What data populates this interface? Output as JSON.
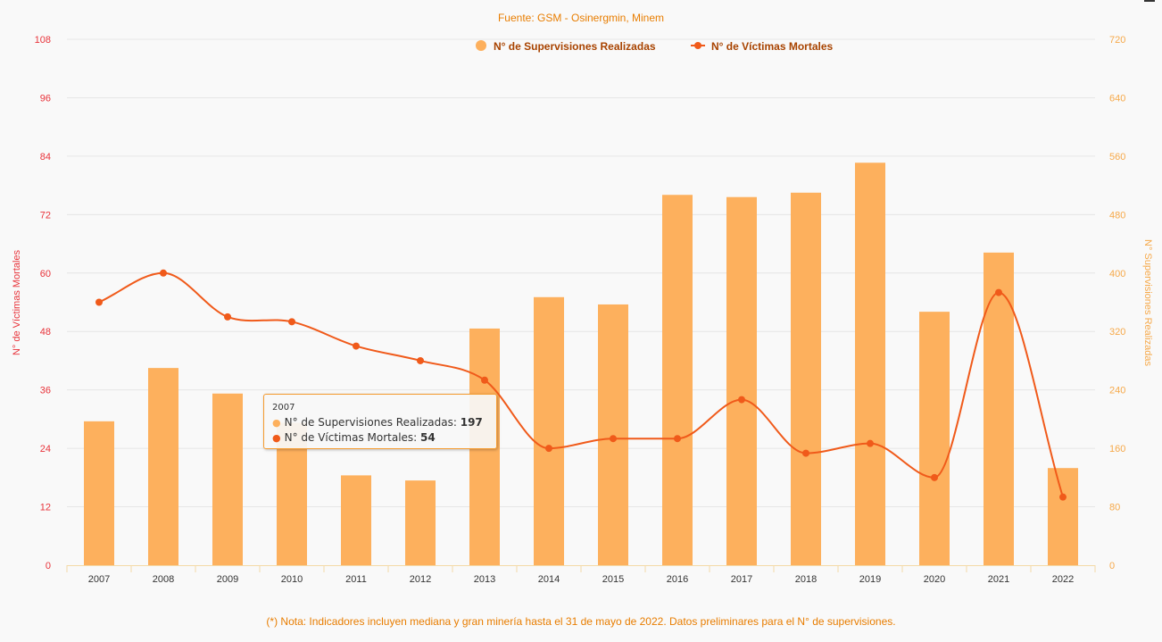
{
  "source_title": "Fuente: GSM - Osinergmin, Minem",
  "footnote": "(*) Nota: Indicadores incluyen mediana y gran minería hasta el 31 de mayo de 2022. Datos preliminares para el N° de supervisiones.",
  "colors": {
    "bars": "#fdb05d",
    "line": "#f05a1a",
    "left_axis": "#e8333a",
    "right_axis": "#f6a94a",
    "text_orange": "#e87d00",
    "grid": "#e6e6e6"
  },
  "legend": {
    "bar_label": "N° de Supervisiones Realizadas",
    "line_label": "N° de Víctimas Mortales"
  },
  "tooltip": {
    "year": "2007",
    "bar_label": "N° de Supervisiones Realizadas",
    "bar_value": "197",
    "line_label": "N° de Víctimas Mortales",
    "line_value": "54"
  },
  "chart_data": {
    "type": "bar",
    "categories": [
      "2007",
      "2008",
      "2009",
      "2010",
      "2011",
      "2012",
      "2013",
      "2014",
      "2015",
      "2016",
      "2017",
      "2018",
      "2019",
      "2020",
      "2021",
      "2022"
    ],
    "series": [
      {
        "name": "N° de Supervisiones Realizadas",
        "type": "bar",
        "axis": "right",
        "values": [
          197,
          270,
          235,
          195,
          123,
          116,
          324,
          367,
          357,
          507,
          504,
          510,
          551,
          347,
          428,
          133
        ]
      },
      {
        "name": "N° de Víctimas Mortales",
        "type": "line",
        "axis": "left",
        "smooth": true,
        "values": [
          54,
          60,
          51,
          50,
          45,
          42,
          38,
          24,
          26,
          26,
          34,
          23,
          25,
          18,
          56,
          14
        ]
      }
    ],
    "left_axis": {
      "label": "N° de Víctimas Mortales",
      "min": 0,
      "max": 108,
      "ticks": [
        0,
        12,
        24,
        36,
        48,
        60,
        72,
        84,
        96,
        108
      ]
    },
    "right_axis": {
      "label": "N° Supervisiones Realizadas",
      "min": 0,
      "max": 720,
      "ticks": [
        0,
        80,
        160,
        240,
        320,
        400,
        480,
        560,
        640,
        720
      ]
    },
    "grid": true,
    "legend_position": "top-center"
  }
}
